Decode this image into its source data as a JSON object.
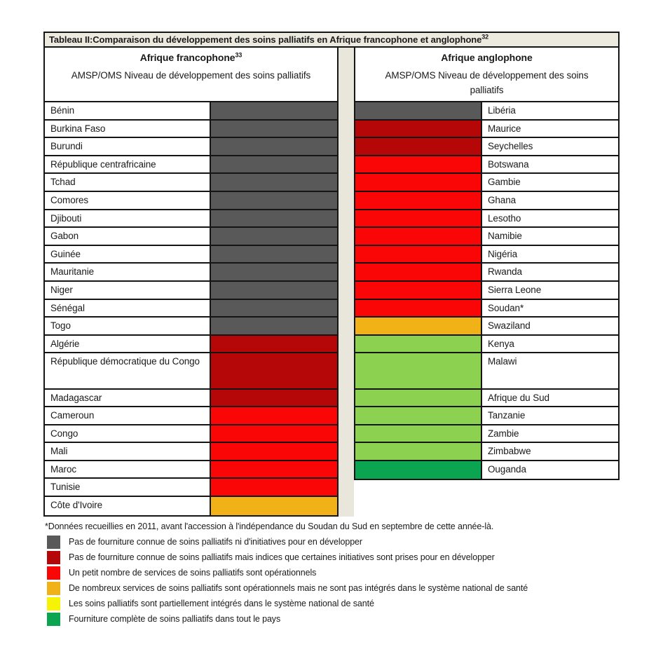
{
  "title": {
    "text": "Tableau II:Comparaison du développement des soins palliatifs en Afrique francophone et anglophone",
    "superscript": "32"
  },
  "palette": {
    "dark_gray": "#595959",
    "dark_red": "#B50707",
    "red": "#FA0606",
    "orange": "#F0B216",
    "yellow": "#F7F304",
    "light_green": "#8CD14F",
    "green": "#0BA551"
  },
  "left_table": {
    "header": {
      "title": "Afrique francophone",
      "title_superscript": "33",
      "subtitle": "AMSP/OMS Niveau de développement des soins palliatifs"
    },
    "rows": [
      {
        "country": "Bénin",
        "color": "dark_gray",
        "tall": false
      },
      {
        "country": "Burkina Faso",
        "color": "dark_gray",
        "tall": false
      },
      {
        "country": "Burundi",
        "color": "dark_gray",
        "tall": false
      },
      {
        "country": "République centrafricaine",
        "color": "dark_gray",
        "tall": false
      },
      {
        "country": "Tchad",
        "color": "dark_gray",
        "tall": false
      },
      {
        "country": "Comores",
        "color": "dark_gray",
        "tall": false
      },
      {
        "country": "Djibouti",
        "color": "dark_gray",
        "tall": false
      },
      {
        "country": "Gabon",
        "color": "dark_gray",
        "tall": false
      },
      {
        "country": "Guinée",
        "color": "dark_gray",
        "tall": false
      },
      {
        "country": "Mauritanie",
        "color": "dark_gray",
        "tall": false
      },
      {
        "country": "Niger",
        "color": "dark_gray",
        "tall": false
      },
      {
        "country": "Sénégal",
        "color": "dark_gray",
        "tall": false
      },
      {
        "country": "Togo",
        "color": "dark_gray",
        "tall": false
      },
      {
        "country": "Algérie",
        "color": "dark_red",
        "tall": false
      },
      {
        "country": "République démocratique du Congo",
        "color": "dark_red",
        "tall": true
      },
      {
        "country": "Madagascar",
        "color": "dark_red",
        "tall": false
      },
      {
        "country": "Cameroun",
        "color": "red",
        "tall": false
      },
      {
        "country": "Congo",
        "color": "red",
        "tall": false
      },
      {
        "country": "Mali",
        "color": "red",
        "tall": false
      },
      {
        "country": "Maroc",
        "color": "red",
        "tall": false
      },
      {
        "country": "Tunisie",
        "color": "red",
        "tall": false
      },
      {
        "country": "Côte d'Ivoire",
        "color": "orange",
        "tall": false
      }
    ]
  },
  "right_table": {
    "header": {
      "title": "Afrique anglophone",
      "subtitle": "AMSP/OMS Niveau de développement des soins palliatifs"
    },
    "rows": [
      {
        "country": "Libéria",
        "color": "dark_gray",
        "tall": false
      },
      {
        "country": "Maurice",
        "color": "dark_red",
        "tall": false
      },
      {
        "country": "Seychelles",
        "color": "dark_red",
        "tall": false
      },
      {
        "country": "Botswana",
        "color": "red",
        "tall": false
      },
      {
        "country": "Gambie",
        "color": "red",
        "tall": false
      },
      {
        "country": "Ghana",
        "color": "red",
        "tall": false
      },
      {
        "country": "Lesotho",
        "color": "red",
        "tall": false
      },
      {
        "country": "Namibie",
        "color": "red",
        "tall": false
      },
      {
        "country": "Nigéria",
        "color": "red",
        "tall": false
      },
      {
        "country": "Rwanda",
        "color": "red",
        "tall": false
      },
      {
        "country": "Sierra Leone",
        "color": "red",
        "tall": false
      },
      {
        "country": "Soudan*",
        "color": "red",
        "tall": false
      },
      {
        "country": "Swaziland",
        "color": "orange",
        "tall": false
      },
      {
        "country": "Kenya",
        "color": "light_green",
        "tall": false
      },
      {
        "country": "Malawi",
        "color": "light_green",
        "tall": true
      },
      {
        "country": "Afrique du Sud",
        "color": "light_green",
        "tall": false
      },
      {
        "country": "Tanzanie",
        "color": "light_green",
        "tall": false
      },
      {
        "country": "Zambie",
        "color": "light_green",
        "tall": false
      },
      {
        "country": "Zimbabwe",
        "color": "light_green",
        "tall": false
      },
      {
        "country": "Ouganda",
        "color": "green",
        "tall": false
      }
    ]
  },
  "footnote": "*Données recueillies en 2011, avant l'accession à l'indépendance du Soudan du Sud en septembre de cette année-là.",
  "legend": [
    {
      "color": "dark_gray",
      "label": "Pas de fourniture connue de soins palliatifs ni d'initiatives pour en développer"
    },
    {
      "color": "dark_red",
      "label": "Pas de fourniture connue de soins palliatifs mais indices que certaines initiatives sont prises pour en développer"
    },
    {
      "color": "red",
      "label": "Un petit nombre de services de soins palliatifs sont opérationnels"
    },
    {
      "color": "orange",
      "label": "De nombreux services de soins palliatifs sont opérationnels mais ne sont pas intégrés dans le système national de santé"
    },
    {
      "color": "yellow",
      "label": "Les soins palliatifs sont partiellement intégrés dans le système national de santé"
    },
    {
      "color": "green",
      "label": "Fourniture complète de soins palliatifs dans tout le pays"
    }
  ]
}
